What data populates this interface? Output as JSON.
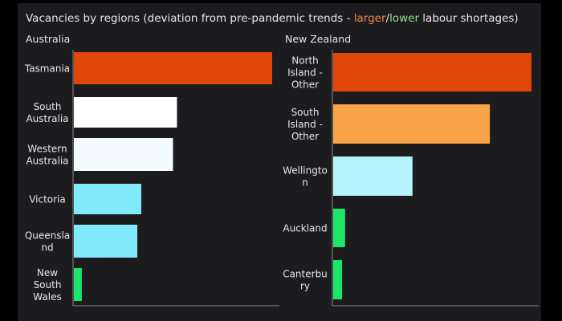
{
  "title": {
    "prefix": "Vacancies by regions (deviation from pre-pandemic trends - ",
    "larger_word": "larger",
    "separator": "/",
    "lower_word": "lower",
    "suffix": " labour shortages)"
  },
  "colors": {
    "background": "#1c1b1d",
    "larger": "#f5894a",
    "lower": "#8ee08e",
    "text": "#e8e8e8",
    "axis": "#8a8a8a"
  },
  "chart_data": [
    {
      "type": "bar",
      "orientation": "horizontal",
      "title": "Australia",
      "categories": [
        [
          "Tasmania"
        ],
        [
          "South",
          "Australia"
        ],
        [
          "Western",
          "Australia"
        ],
        [
          "Victoria"
        ],
        [
          "Queensla",
          "nd"
        ],
        [
          "New",
          "South",
          "Wales"
        ]
      ],
      "category_names": [
        "Tasmania",
        "South Australia",
        "Western Australia",
        "Victoria",
        "Queensland",
        "New South Wales"
      ],
      "values": [
        1.0,
        0.52,
        0.5,
        0.34,
        0.32,
        0.04
      ],
      "bar_colors": [
        "#e14708",
        "#ffffff",
        "#f4fbff",
        "#80eafd",
        "#80eafd",
        "#1ce66a"
      ],
      "xlim": [
        0,
        1.0
      ],
      "grid": false,
      "legend": "none"
    },
    {
      "type": "bar",
      "orientation": "horizontal",
      "title": "New Zealand",
      "categories": [
        [
          "North",
          "Island -",
          "Other"
        ],
        [
          "South",
          "Island -",
          "Other"
        ],
        [
          "Wellingto",
          "n"
        ],
        [
          "Auckland"
        ],
        [
          "Canterbu",
          "ry"
        ]
      ],
      "category_names": [
        "North Island - Other",
        "South Island - Other",
        "Wellington",
        "Auckland",
        "Canterbury"
      ],
      "values": [
        1.0,
        0.79,
        0.4,
        0.06,
        0.045
      ],
      "bar_colors": [
        "#e14708",
        "#f8a347",
        "#b5f3fe",
        "#1ce66a",
        "#1ce66a"
      ],
      "xlim": [
        0,
        1.0
      ],
      "grid": false,
      "legend": "none"
    }
  ]
}
